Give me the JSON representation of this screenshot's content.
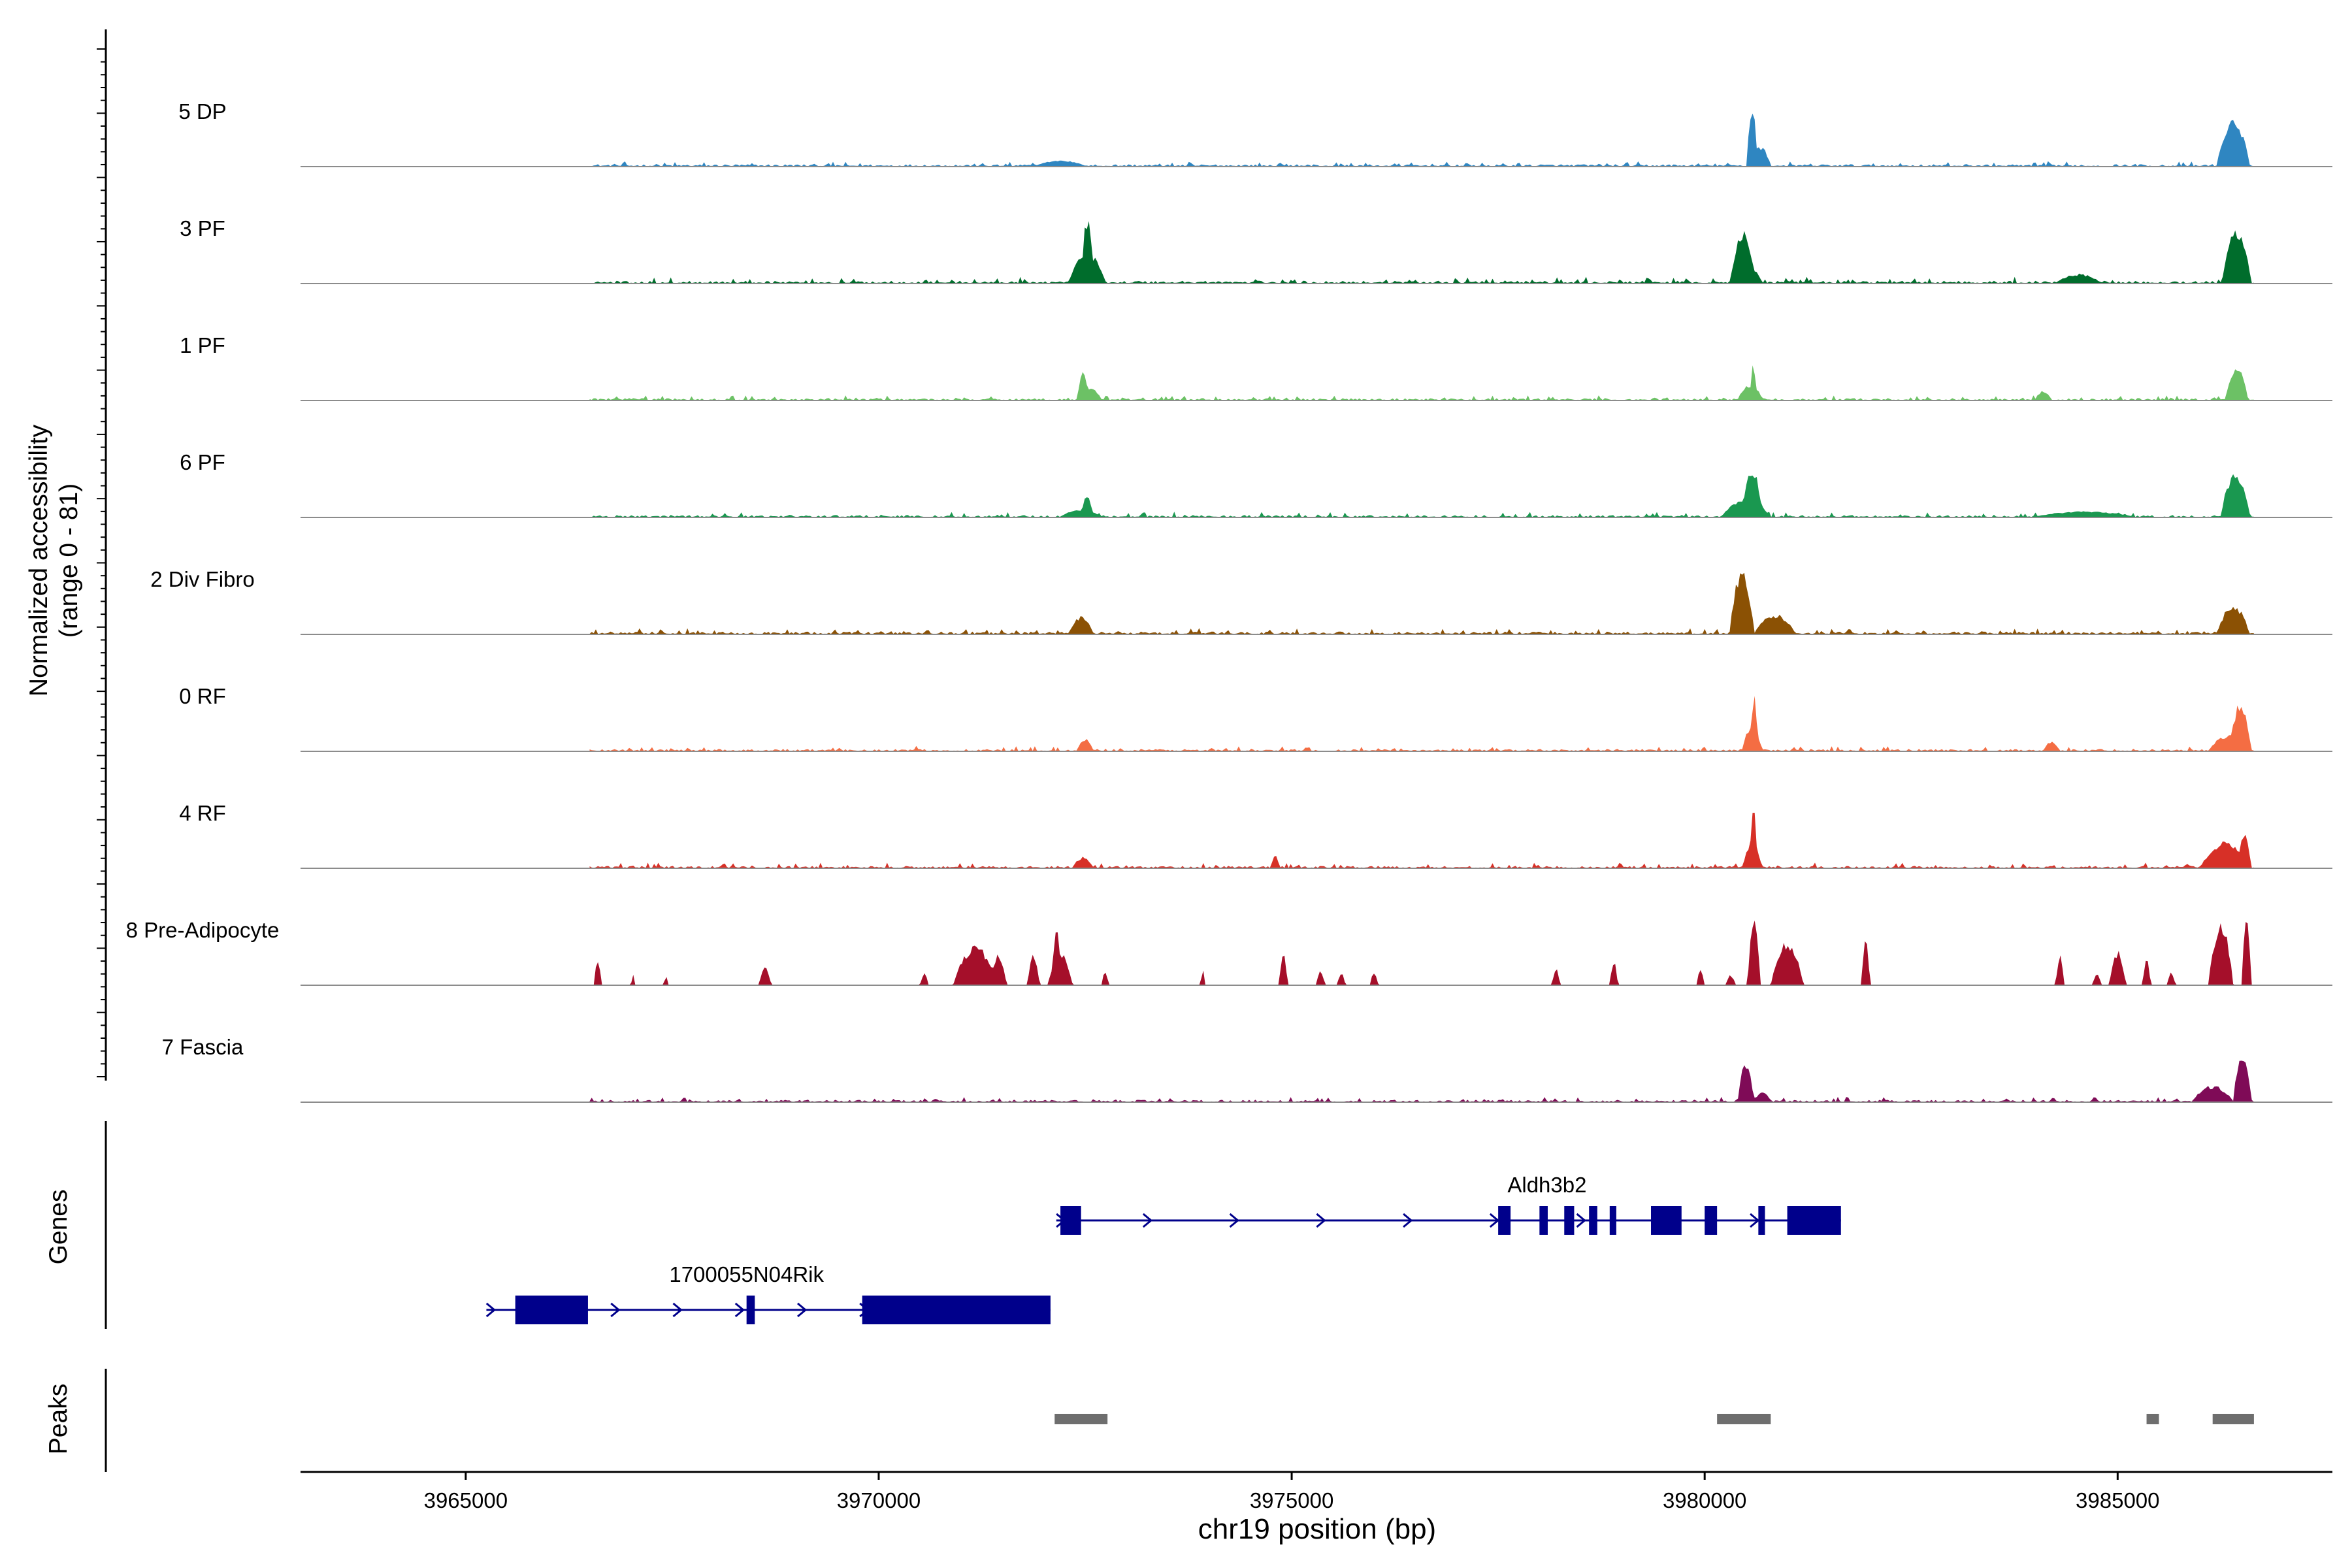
{
  "chart_data": {
    "type": "area",
    "title": "",
    "ylabel": "Normalized accessibility",
    "ylabel_range": "(range 0 - 81)",
    "xlabel": "chr19 position (bp)",
    "xlim": [
      3963000,
      3987600
    ],
    "ylim": [
      0,
      81
    ],
    "x_ticks": [
      3965000,
      3970000,
      3975000,
      3980000,
      3985000
    ],
    "x_tick_labels": [
      "3965000",
      "3970000",
      "3975000",
      "3980000",
      "3985000"
    ],
    "tracks_start": 3966500,
    "tracks_end": 3986650,
    "series": [
      {
        "name": "5 DP",
        "color": "#2f86c1",
        "base": 2.5,
        "noise": 3,
        "peaks": [
          [
            3971900,
            3972500,
            6
          ],
          [
            3980510,
            3980640,
            70
          ],
          [
            3980550,
            3980800,
            22
          ],
          [
            3986200,
            3986600,
            55
          ]
        ]
      },
      {
        "name": "3 PF",
        "color": "#006d2c",
        "base": 3,
        "noise": 4,
        "peaks": [
          [
            3972450,
            3972600,
            78
          ],
          [
            3972300,
            3972750,
            35
          ],
          [
            3980310,
            3980620,
            60
          ],
          [
            3980300,
            3980700,
            22
          ],
          [
            3984250,
            3984800,
            10
          ],
          [
            3986260,
            3986620,
            62
          ]
        ]
      },
      {
        "name": "1 PF",
        "color": "#6cc165",
        "base": 2.5,
        "noise": 3,
        "peaks": [
          [
            3972400,
            3972550,
            32
          ],
          [
            3972400,
            3972700,
            14
          ],
          [
            3980550,
            3980620,
            44
          ],
          [
            3980400,
            3980700,
            18
          ],
          [
            3984000,
            3984200,
            10
          ],
          [
            3986300,
            3986580,
            38
          ]
        ]
      },
      {
        "name": "6 PF",
        "color": "#1a9850",
        "base": 2.5,
        "noise": 3.5,
        "peaks": [
          [
            3972450,
            3972600,
            24
          ],
          [
            3972200,
            3972700,
            8
          ],
          [
            3980450,
            3980700,
            58
          ],
          [
            3980200,
            3980800,
            20
          ],
          [
            3984000,
            3985200,
            6
          ],
          [
            3986250,
            3986600,
            52
          ]
        ]
      },
      {
        "name": "2 Div Fibro",
        "color": "#8b5104",
        "base": 3,
        "noise": 3.5,
        "peaks": [
          [
            3972300,
            3972600,
            20
          ],
          [
            3980300,
            3980600,
            72
          ],
          [
            3980600,
            3981100,
            22
          ],
          [
            3986200,
            3986600,
            32
          ]
        ]
      },
      {
        "name": "0 RF",
        "color": "#f46d43",
        "base": 2.5,
        "noise": 3,
        "peaks": [
          [
            3972400,
            3972600,
            14
          ],
          [
            3980560,
            3980640,
            72
          ],
          [
            3980450,
            3980700,
            28
          ],
          [
            3984100,
            3984300,
            10
          ],
          [
            3986350,
            3986620,
            55
          ],
          [
            3986100,
            3986600,
            18
          ]
        ]
      },
      {
        "name": "4 RF",
        "color": "#d73027",
        "base": 2.5,
        "noise": 3.5,
        "peaks": [
          [
            3972350,
            3972600,
            12
          ],
          [
            3974750,
            3974850,
            16
          ],
          [
            3980540,
            3980640,
            68
          ],
          [
            3980450,
            3980700,
            25
          ],
          [
            3986000,
            3986600,
            30
          ],
          [
            3986450,
            3986620,
            38
          ]
        ]
      },
      {
        "name": "8 Pre-Adipocyte",
        "color": "#a50f2a",
        "base": 0,
        "noise": 0,
        "peaks": [
          [
            3966550,
            3966650,
            28
          ],
          [
            3967000,
            3967050,
            12
          ],
          [
            3967400,
            3967450,
            12
          ],
          [
            3968550,
            3968700,
            20
          ],
          [
            3970500,
            3970600,
            14
          ],
          [
            3970900,
            3971450,
            45
          ],
          [
            3971350,
            3971550,
            35
          ],
          [
            3971800,
            3971950,
            35
          ],
          [
            3972100,
            3972200,
            75
          ],
          [
            3972050,
            3972350,
            40
          ],
          [
            3972700,
            3972780,
            18
          ],
          [
            3973900,
            3973950,
            22
          ],
          [
            3974850,
            3974950,
            40
          ],
          [
            3975300,
            3975400,
            18
          ],
          [
            3975550,
            3975650,
            15
          ],
          [
            3975950,
            3976050,
            15
          ],
          [
            3978150,
            3978250,
            20
          ],
          [
            3978850,
            3978950,
            28
          ],
          [
            3979900,
            3980000,
            18
          ],
          [
            3980250,
            3980380,
            12
          ],
          [
            3980520,
            3980680,
            78
          ],
          [
            3980800,
            3981200,
            50
          ],
          [
            3981900,
            3982000,
            52
          ],
          [
            3984250,
            3984350,
            35
          ],
          [
            3984700,
            3984800,
            15
          ],
          [
            3984900,
            3985100,
            40
          ],
          [
            3985300,
            3985400,
            30
          ],
          [
            3985600,
            3985700,
            15
          ],
          [
            3986100,
            3986400,
            75
          ],
          [
            3986500,
            3986620,
            82
          ]
        ]
      },
      {
        "name": "7 Fascia",
        "color": "#7f0b57",
        "base": 2.5,
        "noise": 3,
        "peaks": [
          [
            3980400,
            3980600,
            44
          ],
          [
            3980600,
            3980800,
            10
          ],
          [
            3985900,
            3986400,
            18
          ],
          [
            3986400,
            3986620,
            58
          ]
        ]
      }
    ],
    "genes": [
      {
        "name": "Aldh3b2",
        "start": 3972150,
        "end": 3981650,
        "strand": "+",
        "exons": [
          [
            3972200,
            3972450
          ],
          [
            3977500,
            3977650
          ],
          [
            3978000,
            3978100
          ],
          [
            3978300,
            3978420
          ],
          [
            3978600,
            3978700
          ],
          [
            3978850,
            3978930
          ],
          [
            3979350,
            3979720
          ],
          [
            3980000,
            3980150
          ],
          [
            3980650,
            3980730
          ],
          [
            3981000,
            3981650
          ]
        ]
      },
      {
        "name": "1700055N04Rik",
        "start": 3965250,
        "end": 3972080,
        "strand": "+",
        "exons": [
          [
            3965600,
            3966480
          ],
          [
            3968400,
            3968500
          ],
          [
            3969800,
            3972080
          ]
        ]
      }
    ],
    "peaks": [
      [
        3972130,
        3972770
      ],
      [
        3980150,
        3980800
      ],
      [
        3985350,
        3985500
      ],
      [
        3986150,
        3986650
      ]
    ],
    "panel_labels": {
      "genes": "Genes",
      "peaks": "Peaks"
    }
  }
}
